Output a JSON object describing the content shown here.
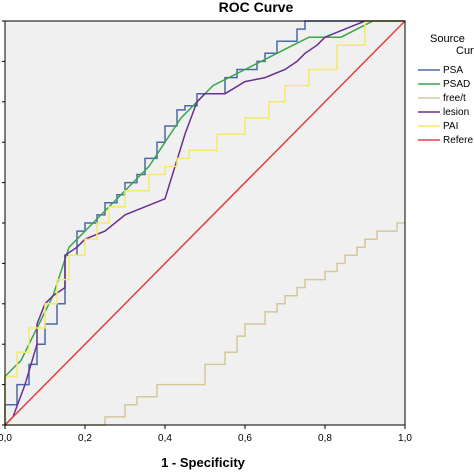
{
  "chart_data": {
    "type": "line",
    "title": "ROC Curve",
    "xlabel": "1 - Specificity",
    "ylabel": "",
    "xlim": [
      0,
      1
    ],
    "ylim": [
      0,
      1
    ],
    "x_ticks": [
      "0,0",
      "0,2",
      "0,4",
      "0,6",
      "0,8",
      "1,0"
    ],
    "grid": false,
    "background": "#f0f0f0",
    "legend": {
      "placement": "right",
      "title_lines": [
        "Source",
        "Curv"
      ]
    },
    "series": [
      {
        "name": "PSA",
        "color": "#4a69a8",
        "x": [
          0.0,
          0.0,
          0.03,
          0.03,
          0.06,
          0.06,
          0.08,
          0.08,
          0.1,
          0.1,
          0.13,
          0.13,
          0.15,
          0.15,
          0.18,
          0.18,
          0.2,
          0.2,
          0.23,
          0.23,
          0.25,
          0.25,
          0.28,
          0.28,
          0.3,
          0.3,
          0.33,
          0.33,
          0.35,
          0.35,
          0.38,
          0.38,
          0.4,
          0.4,
          0.43,
          0.43,
          0.45,
          0.45,
          0.48,
          0.48,
          0.5,
          0.5,
          0.55,
          0.55,
          0.58,
          0.58,
          0.6,
          0.6,
          0.63,
          0.63,
          0.65,
          0.65,
          0.68,
          0.68,
          0.7,
          0.7,
          0.73,
          0.73,
          0.75,
          0.75,
          0.93,
          0.93,
          1.0
        ],
        "y": [
          0.0,
          0.05,
          0.05,
          0.1,
          0.1,
          0.15,
          0.15,
          0.2,
          0.2,
          0.25,
          0.25,
          0.3,
          0.3,
          0.42,
          0.42,
          0.48,
          0.48,
          0.5,
          0.5,
          0.52,
          0.52,
          0.55,
          0.55,
          0.57,
          0.57,
          0.6,
          0.6,
          0.62,
          0.62,
          0.66,
          0.66,
          0.7,
          0.7,
          0.74,
          0.74,
          0.78,
          0.78,
          0.79,
          0.79,
          0.82,
          0.82,
          0.82,
          0.82,
          0.86,
          0.86,
          0.88,
          0.88,
          0.88,
          0.88,
          0.9,
          0.9,
          0.92,
          0.92,
          0.95,
          0.95,
          0.95,
          0.95,
          0.98,
          0.98,
          1.0,
          1.0,
          1.0,
          1.0
        ]
      },
      {
        "name": "PSAD",
        "color": "#3aa64a",
        "x": [
          0.0,
          0.0,
          0.02,
          0.04,
          0.06,
          0.08,
          0.1,
          0.12,
          0.14,
          0.16,
          0.18,
          0.2,
          0.24,
          0.28,
          0.32,
          0.36,
          0.4,
          0.44,
          0.48,
          0.52,
          0.56,
          0.6,
          0.64,
          0.68,
          0.72,
          0.76,
          0.8,
          0.84,
          0.88,
          0.92,
          0.96,
          1.0
        ],
        "y": [
          0.0,
          0.12,
          0.14,
          0.16,
          0.2,
          0.24,
          0.28,
          0.32,
          0.38,
          0.44,
          0.46,
          0.48,
          0.52,
          0.56,
          0.6,
          0.64,
          0.7,
          0.76,
          0.8,
          0.84,
          0.86,
          0.88,
          0.9,
          0.92,
          0.94,
          0.96,
          0.96,
          0.96,
          0.98,
          1.0,
          1.0,
          1.0
        ]
      },
      {
        "name": "free/t",
        "color": "#d4c79a",
        "x": [
          0.0,
          0.25,
          0.25,
          0.3,
          0.3,
          0.33,
          0.33,
          0.38,
          0.38,
          0.5,
          0.5,
          0.55,
          0.55,
          0.58,
          0.58,
          0.6,
          0.6,
          0.65,
          0.65,
          0.68,
          0.68,
          0.7,
          0.7,
          0.73,
          0.73,
          0.75,
          0.75,
          0.8,
          0.8,
          0.83,
          0.83,
          0.85,
          0.85,
          0.88,
          0.88,
          0.9,
          0.9,
          0.93,
          0.93,
          0.98,
          0.98,
          1.0
        ],
        "y": [
          0.0,
          0.0,
          0.02,
          0.02,
          0.05,
          0.05,
          0.07,
          0.07,
          0.1,
          0.1,
          0.15,
          0.15,
          0.18,
          0.18,
          0.22,
          0.22,
          0.25,
          0.25,
          0.28,
          0.28,
          0.3,
          0.3,
          0.32,
          0.32,
          0.34,
          0.34,
          0.36,
          0.36,
          0.38,
          0.38,
          0.4,
          0.4,
          0.42,
          0.42,
          0.44,
          0.44,
          0.46,
          0.46,
          0.48,
          0.48,
          0.5,
          0.5
        ]
      },
      {
        "name": "lesion",
        "color": "#6b2f8f",
        "x": [
          0.0,
          0.02,
          0.05,
          0.08,
          0.08,
          0.1,
          0.12,
          0.15,
          0.15,
          0.18,
          0.2,
          0.25,
          0.3,
          0.35,
          0.4,
          0.45,
          0.48,
          0.5,
          0.55,
          0.6,
          0.65,
          0.7,
          0.73,
          0.75,
          0.78,
          0.8,
          0.85,
          0.9,
          0.95,
          1.0
        ],
        "y": [
          0.0,
          0.02,
          0.1,
          0.2,
          0.25,
          0.3,
          0.32,
          0.34,
          0.42,
          0.44,
          0.46,
          0.48,
          0.52,
          0.54,
          0.56,
          0.72,
          0.8,
          0.82,
          0.82,
          0.85,
          0.86,
          0.88,
          0.9,
          0.92,
          0.94,
          0.96,
          0.98,
          1.0,
          1.0,
          1.0
        ]
      },
      {
        "name": "PAI",
        "color": "#f5e96b",
        "x": [
          0.0,
          0.0,
          0.03,
          0.03,
          0.06,
          0.06,
          0.1,
          0.1,
          0.13,
          0.13,
          0.16,
          0.16,
          0.2,
          0.2,
          0.23,
          0.23,
          0.26,
          0.26,
          0.3,
          0.3,
          0.36,
          0.36,
          0.4,
          0.4,
          0.43,
          0.43,
          0.46,
          0.46,
          0.53,
          0.53,
          0.6,
          0.6,
          0.66,
          0.66,
          0.7,
          0.7,
          0.76,
          0.76,
          0.83,
          0.83,
          0.9,
          0.9,
          1.0
        ],
        "y": [
          0.0,
          0.12,
          0.12,
          0.18,
          0.18,
          0.24,
          0.24,
          0.3,
          0.3,
          0.36,
          0.36,
          0.42,
          0.42,
          0.46,
          0.46,
          0.5,
          0.5,
          0.54,
          0.54,
          0.58,
          0.58,
          0.62,
          0.62,
          0.64,
          0.64,
          0.66,
          0.66,
          0.68,
          0.68,
          0.72,
          0.72,
          0.76,
          0.76,
          0.8,
          0.8,
          0.84,
          0.84,
          0.88,
          0.88,
          0.94,
          0.94,
          1.0,
          1.0
        ]
      },
      {
        "name": "Refere",
        "color": "#e04040",
        "x": [
          0.0,
          1.0
        ],
        "y": [
          0.0,
          1.0
        ]
      }
    ]
  }
}
